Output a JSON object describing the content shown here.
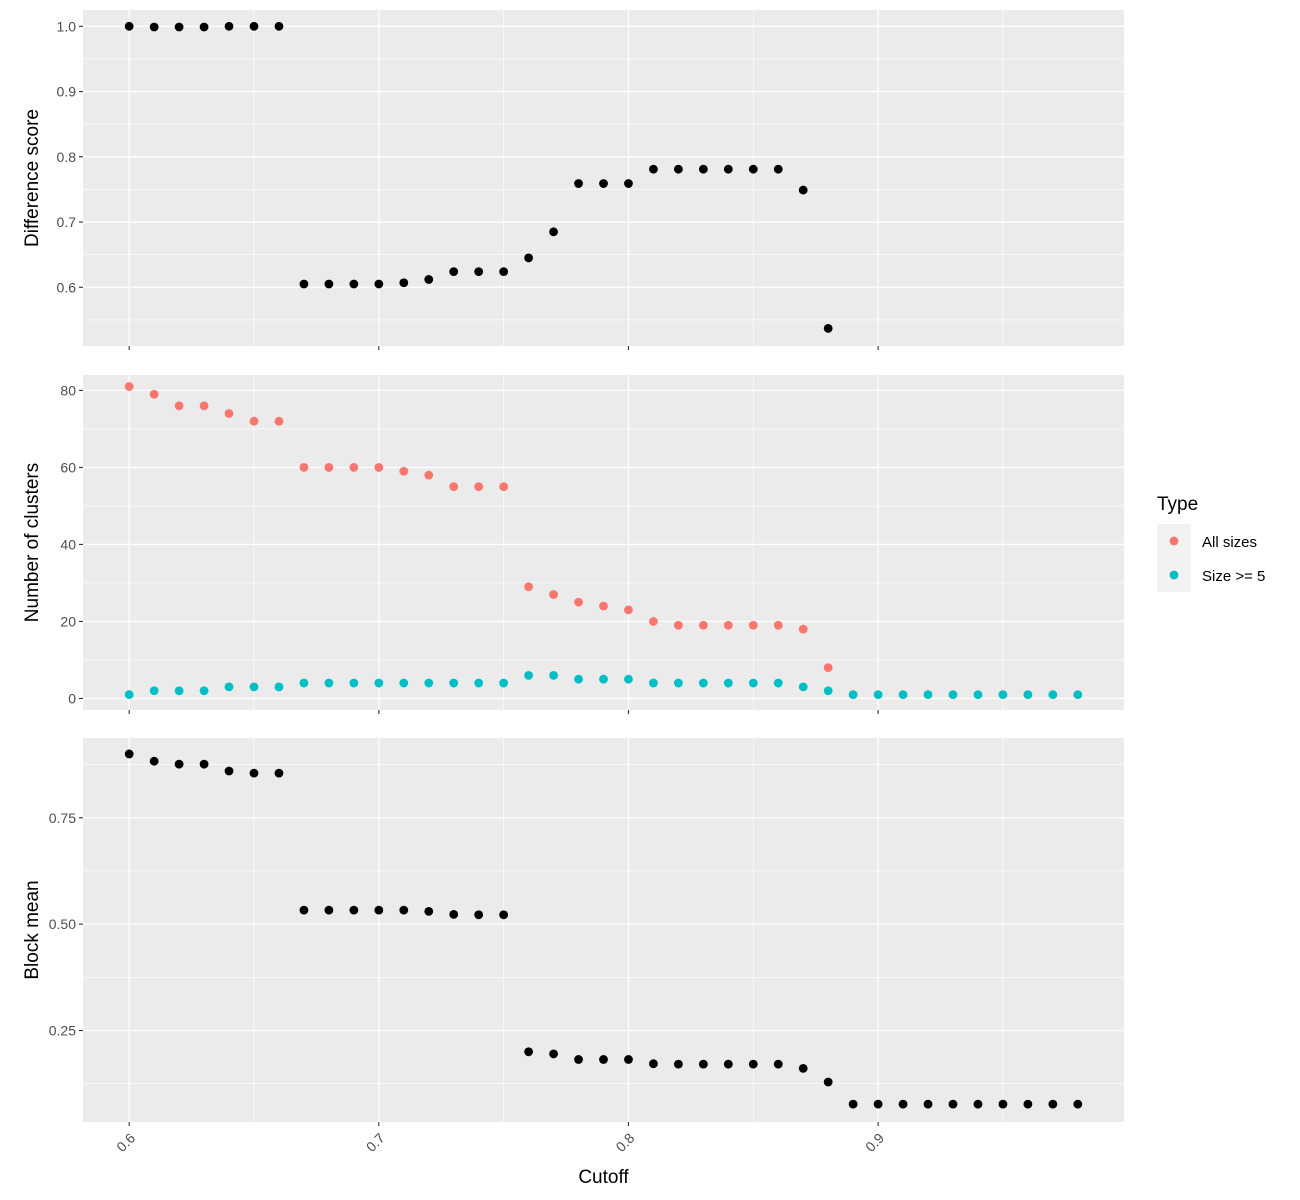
{
  "chart_data": {
    "type": "scatter",
    "xlabel": "Cutoff",
    "x_ticks": [
      0.6,
      0.7,
      0.8,
      0.9
    ],
    "x_tick_labels": [
      "0.6",
      "0.7",
      "0.8",
      "0.9"
    ],
    "xlim": [
      0.5815,
      0.9985
    ],
    "grid": true,
    "legend": {
      "title": "Type",
      "position": "right",
      "entries": [
        {
          "label": "All sizes",
          "color": "#F8766D"
        },
        {
          "label": "Size >= 5",
          "color": "#00BFC4"
        }
      ]
    },
    "panels": [
      {
        "ylabel": "Difference score",
        "ylim": [
          0.51,
          1.025
        ],
        "y_ticks": [
          0.6,
          0.7,
          0.8,
          0.9,
          1.0
        ],
        "y_tick_labels": [
          "0.6",
          "0.7",
          "0.8",
          "0.9",
          "1.0"
        ],
        "series": [
          {
            "color": "#000000",
            "x": [
              0.6,
              0.61,
              0.62,
              0.63,
              0.64,
              0.65,
              0.66,
              0.67,
              0.68,
              0.69,
              0.7,
              0.71,
              0.72,
              0.73,
              0.74,
              0.75,
              0.76,
              0.77,
              0.78,
              0.79,
              0.8,
              0.81,
              0.82,
              0.83,
              0.84,
              0.85,
              0.86,
              0.87,
              0.88
            ],
            "y": [
              1.0,
              0.999,
              0.999,
              0.999,
              1.0,
              1.0,
              1.0,
              0.605,
              0.605,
              0.605,
              0.605,
              0.607,
              0.612,
              0.624,
              0.624,
              0.624,
              0.645,
              0.685,
              0.759,
              0.759,
              0.759,
              0.781,
              0.781,
              0.781,
              0.781,
              0.781,
              0.781,
              0.749,
              0.537
            ]
          }
        ]
      },
      {
        "ylabel": "Number of clusters",
        "ylim": [
          -3,
          84
        ],
        "y_ticks": [
          0,
          20,
          40,
          60,
          80
        ],
        "y_tick_labels": [
          "0",
          "20",
          "40",
          "60",
          "80"
        ],
        "series": [
          {
            "name": "All sizes",
            "color": "#F8766D",
            "x": [
              0.6,
              0.61,
              0.62,
              0.63,
              0.64,
              0.65,
              0.66,
              0.67,
              0.68,
              0.69,
              0.7,
              0.71,
              0.72,
              0.73,
              0.74,
              0.75,
              0.76,
              0.77,
              0.78,
              0.79,
              0.8,
              0.81,
              0.82,
              0.83,
              0.84,
              0.85,
              0.86,
              0.87,
              0.88
            ],
            "y": [
              81,
              79,
              76,
              76,
              74,
              72,
              72,
              60,
              60,
              60,
              60,
              59,
              58,
              55,
              55,
              55,
              29,
              27,
              25,
              24,
              23,
              20,
              19,
              19,
              19,
              19,
              19,
              18,
              8
            ]
          },
          {
            "name": "Size >= 5",
            "color": "#00BFC4",
            "x": [
              0.6,
              0.61,
              0.62,
              0.63,
              0.64,
              0.65,
              0.66,
              0.67,
              0.68,
              0.69,
              0.7,
              0.71,
              0.72,
              0.73,
              0.74,
              0.75,
              0.76,
              0.77,
              0.78,
              0.79,
              0.8,
              0.81,
              0.82,
              0.83,
              0.84,
              0.85,
              0.86,
              0.87,
              0.88,
              0.89,
              0.9,
              0.91,
              0.92,
              0.93,
              0.94,
              0.95,
              0.96,
              0.97,
              0.98
            ],
            "y": [
              1,
              2,
              2,
              2,
              3,
              3,
              3,
              4,
              4,
              4,
              4,
              4,
              4,
              4,
              4,
              4,
              6,
              6,
              5,
              5,
              5,
              4,
              4,
              4,
              4,
              4,
              4,
              3,
              2,
              1,
              1,
              1,
              1,
              1,
              1,
              1,
              1,
              1,
              1
            ]
          }
        ]
      },
      {
        "ylabel": "Block mean",
        "ylim": [
          0.035,
          0.9375
        ],
        "y_ticks": [
          0.25,
          0.5,
          0.75
        ],
        "y_tick_labels": [
          "0.25",
          "0.50",
          "0.75"
        ],
        "series": [
          {
            "color": "#000000",
            "x": [
              0.6,
              0.61,
              0.62,
              0.63,
              0.64,
              0.65,
              0.66,
              0.67,
              0.68,
              0.69,
              0.7,
              0.71,
              0.72,
              0.73,
              0.74,
              0.75,
              0.76,
              0.77,
              0.78,
              0.79,
              0.8,
              0.81,
              0.82,
              0.83,
              0.84,
              0.85,
              0.86,
              0.87,
              0.88,
              0.89,
              0.9,
              0.91,
              0.92,
              0.93,
              0.94,
              0.95,
              0.96,
              0.97,
              0.98
            ],
            "y": [
              0.9,
              0.883,
              0.876,
              0.876,
              0.86,
              0.855,
              0.855,
              0.533,
              0.533,
              0.533,
              0.533,
              0.533,
              0.53,
              0.523,
              0.522,
              0.522,
              0.2,
              0.195,
              0.182,
              0.182,
              0.182,
              0.172,
              0.171,
              0.171,
              0.171,
              0.171,
              0.171,
              0.161,
              0.129,
              0.077,
              0.077,
              0.077,
              0.077,
              0.077,
              0.077,
              0.077,
              0.077,
              0.077,
              0.077
            ]
          }
        ]
      }
    ]
  }
}
